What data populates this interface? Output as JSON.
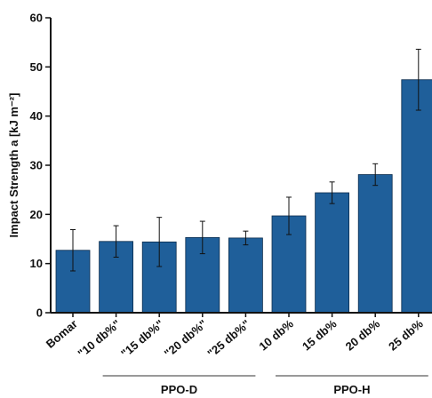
{
  "chart_data": {
    "type": "bar",
    "categories": [
      "Bomar",
      "\"10 db%\"",
      "\"15 db%\"",
      "\"20 db%\"",
      "\"25 db%\"",
      "10 db%",
      "15 db%",
      "20 db%",
      "25 db%"
    ],
    "values": [
      12.7,
      14.5,
      14.4,
      15.3,
      15.2,
      19.7,
      24.4,
      28.1,
      47.4
    ],
    "errors": [
      4.2,
      3.2,
      5.0,
      3.3,
      1.4,
      3.8,
      2.2,
      2.2,
      6.2
    ],
    "xlabel": "",
    "ylabel": "Impact Strength a [kJ m⁻²]",
    "ylim": [
      0,
      60
    ],
    "yticks": [
      0,
      10,
      20,
      30,
      40,
      50,
      60
    ],
    "bar_color": "#1f5f9a",
    "grid": false,
    "groups": [
      {
        "label": "PPO-D",
        "from": 1,
        "to": 4
      },
      {
        "label": "PPO-H",
        "from": 5,
        "to": 8
      }
    ]
  }
}
